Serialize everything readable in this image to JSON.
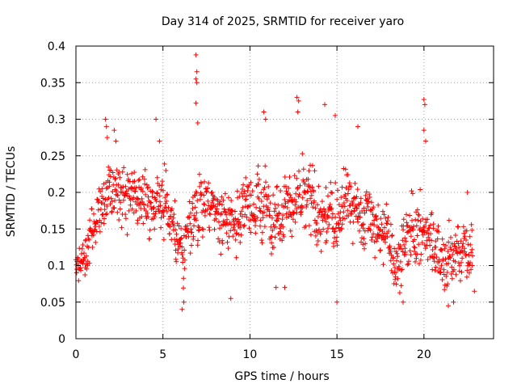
{
  "chart_data": {
    "type": "scatter",
    "title": "Day 314 of 2025, SRMTID for receiver yaro",
    "xlabel": "GPS time / hours",
    "ylabel": "SRMTID / TECUs",
    "xlim": [
      0,
      24
    ],
    "ylim": [
      0,
      0.4
    ],
    "xticks": [
      0,
      5,
      10,
      15,
      20
    ],
    "yticks": [
      0,
      0.05,
      0.1,
      0.15,
      0.2,
      0.25,
      0.3,
      0.35,
      0.4
    ],
    "grid": true,
    "marker": "+",
    "color": "#ff0000",
    "series": [
      {
        "name": "SRMTID",
        "envelope": [
          {
            "x": 0.0,
            "y": 0.1,
            "spread": 0.015
          },
          {
            "x": 0.5,
            "y": 0.11,
            "spread": 0.025
          },
          {
            "x": 0.8,
            "y": 0.14,
            "spread": 0.025
          },
          {
            "x": 1.2,
            "y": 0.17,
            "spread": 0.03
          },
          {
            "x": 1.7,
            "y": 0.21,
            "spread": 0.04
          },
          {
            "x": 2.3,
            "y": 0.2,
            "spread": 0.035
          },
          {
            "x": 3.0,
            "y": 0.18,
            "spread": 0.035
          },
          {
            "x": 4.0,
            "y": 0.19,
            "spread": 0.035
          },
          {
            "x": 5.0,
            "y": 0.19,
            "spread": 0.04
          },
          {
            "x": 5.6,
            "y": 0.16,
            "spread": 0.03
          },
          {
            "x": 6.2,
            "y": 0.1,
            "spread": 0.035
          },
          {
            "x": 6.8,
            "y": 0.17,
            "spread": 0.04
          },
          {
            "x": 7.5,
            "y": 0.19,
            "spread": 0.03
          },
          {
            "x": 8.5,
            "y": 0.16,
            "spread": 0.035
          },
          {
            "x": 9.5,
            "y": 0.17,
            "spread": 0.035
          },
          {
            "x": 10.5,
            "y": 0.19,
            "spread": 0.04
          },
          {
            "x": 11.5,
            "y": 0.17,
            "spread": 0.04
          },
          {
            "x": 12.5,
            "y": 0.19,
            "spread": 0.04
          },
          {
            "x": 13.5,
            "y": 0.18,
            "spread": 0.045
          },
          {
            "x": 14.5,
            "y": 0.16,
            "spread": 0.04
          },
          {
            "x": 15.5,
            "y": 0.19,
            "spread": 0.035
          },
          {
            "x": 16.5,
            "y": 0.17,
            "spread": 0.035
          },
          {
            "x": 17.5,
            "y": 0.15,
            "spread": 0.035
          },
          {
            "x": 18.5,
            "y": 0.11,
            "spread": 0.035
          },
          {
            "x": 19.5,
            "y": 0.15,
            "spread": 0.04
          },
          {
            "x": 20.5,
            "y": 0.14,
            "spread": 0.04
          },
          {
            "x": 21.2,
            "y": 0.1,
            "spread": 0.035
          },
          {
            "x": 22.0,
            "y": 0.12,
            "spread": 0.035
          },
          {
            "x": 22.8,
            "y": 0.12,
            "spread": 0.03
          }
        ],
        "sample_count": 1250,
        "outliers": [
          {
            "x": 1.7,
            "y": 0.3
          },
          {
            "x": 1.75,
            "y": 0.29
          },
          {
            "x": 1.8,
            "y": 0.275
          },
          {
            "x": 2.2,
            "y": 0.285
          },
          {
            "x": 2.3,
            "y": 0.27
          },
          {
            "x": 4.6,
            "y": 0.3
          },
          {
            "x": 4.8,
            "y": 0.27
          },
          {
            "x": 6.1,
            "y": 0.04
          },
          {
            "x": 6.2,
            "y": 0.05
          },
          {
            "x": 6.9,
            "y": 0.388
          },
          {
            "x": 6.95,
            "y": 0.365
          },
          {
            "x": 6.9,
            "y": 0.355
          },
          {
            "x": 6.95,
            "y": 0.35
          },
          {
            "x": 6.9,
            "y": 0.322
          },
          {
            "x": 7.0,
            "y": 0.295
          },
          {
            "x": 8.9,
            "y": 0.055
          },
          {
            "x": 10.8,
            "y": 0.31
          },
          {
            "x": 10.9,
            "y": 0.3
          },
          {
            "x": 11.5,
            "y": 0.07
          },
          {
            "x": 12.0,
            "y": 0.07
          },
          {
            "x": 12.7,
            "y": 0.33
          },
          {
            "x": 12.8,
            "y": 0.325
          },
          {
            "x": 12.75,
            "y": 0.31
          },
          {
            "x": 14.3,
            "y": 0.32
          },
          {
            "x": 14.9,
            "y": 0.305
          },
          {
            "x": 15.0,
            "y": 0.05
          },
          {
            "x": 16.2,
            "y": 0.29
          },
          {
            "x": 18.8,
            "y": 0.05
          },
          {
            "x": 20.0,
            "y": 0.327
          },
          {
            "x": 20.05,
            "y": 0.32
          },
          {
            "x": 20.0,
            "y": 0.285
          },
          {
            "x": 20.1,
            "y": 0.27
          },
          {
            "x": 21.4,
            "y": 0.045
          },
          {
            "x": 21.7,
            "y": 0.05
          },
          {
            "x": 22.5,
            "y": 0.2
          },
          {
            "x": 22.9,
            "y": 0.065
          }
        ]
      }
    ]
  }
}
